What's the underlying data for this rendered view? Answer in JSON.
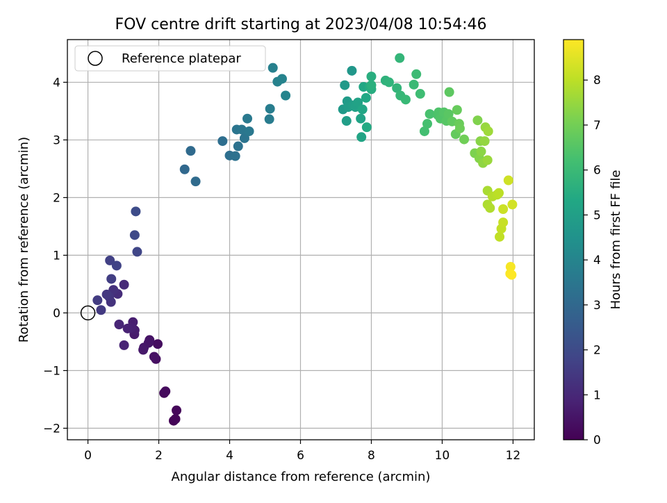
{
  "chart_data": {
    "type": "scatter",
    "title": "FOV centre drift starting at 2023/04/08 10:54:46",
    "xlabel": "Angular distance from reference (arcmin)",
    "ylabel": "Rotation from reference (arcmin)",
    "xlim": [
      -0.58,
      12.6
    ],
    "ylim": [
      -2.2,
      4.74
    ],
    "xticks": [
      "0",
      "2",
      "4",
      "6",
      "8",
      "10",
      "12"
    ],
    "yticks": [
      "−2",
      "−1",
      "0",
      "1",
      "2",
      "3",
      "4"
    ],
    "grid": true,
    "legend": {
      "position": "top-left",
      "entries": [
        {
          "label": "Reference platepar"
        }
      ]
    },
    "reference_point": {
      "x": 0,
      "y": 0
    },
    "colorbar": {
      "label": "Hours from first FF file",
      "colormap": "viridis",
      "range": [
        0,
        8.9
      ],
      "ticks": [
        "0",
        "1",
        "2",
        "3",
        "4",
        "5",
        "6",
        "7",
        "8"
      ]
    },
    "points": [
      {
        "x": 2.42,
        "y": -1.87,
        "t": 0.05
      },
      {
        "x": 2.47,
        "y": -1.84,
        "t": 0.1
      },
      {
        "x": 2.5,
        "y": -1.69,
        "t": 0.15
      },
      {
        "x": 2.15,
        "y": -1.39,
        "t": 0.2
      },
      {
        "x": 2.19,
        "y": -1.36,
        "t": 0.25
      },
      {
        "x": 1.97,
        "y": -0.54,
        "t": 0.3
      },
      {
        "x": 1.92,
        "y": -0.8,
        "t": 0.35
      },
      {
        "x": 1.87,
        "y": -0.76,
        "t": 0.4
      },
      {
        "x": 1.74,
        "y": -0.47,
        "t": 0.45
      },
      {
        "x": 1.71,
        "y": -0.52,
        "t": 0.5
      },
      {
        "x": 1.58,
        "y": -0.6,
        "t": 0.55
      },
      {
        "x": 1.56,
        "y": -0.64,
        "t": 0.6
      },
      {
        "x": 1.31,
        "y": -0.37,
        "t": 0.65
      },
      {
        "x": 1.32,
        "y": -0.3,
        "t": 0.7
      },
      {
        "x": 1.27,
        "y": -0.16,
        "t": 0.75
      },
      {
        "x": 1.22,
        "y": -0.26,
        "t": 0.8
      },
      {
        "x": 1.12,
        "y": -0.27,
        "t": 0.85
      },
      {
        "x": 1.02,
        "y": -0.56,
        "t": 0.9
      },
      {
        "x": 0.88,
        "y": -0.2,
        "t": 0.95
      },
      {
        "x": 1.02,
        "y": 0.49,
        "t": 1.05
      },
      {
        "x": 0.84,
        "y": 0.33,
        "t": 1.15
      },
      {
        "x": 0.72,
        "y": 0.4,
        "t": 1.25
      },
      {
        "x": 0.65,
        "y": 0.19,
        "t": 1.3
      },
      {
        "x": 0.6,
        "y": 0.28,
        "t": 1.35
      },
      {
        "x": 0.53,
        "y": 0.32,
        "t": 1.45
      },
      {
        "x": 0.37,
        "y": 0.05,
        "t": 1.5
      },
      {
        "x": 0.27,
        "y": 0.22,
        "t": 1.55
      },
      {
        "x": 0.66,
        "y": 0.59,
        "t": 1.6
      },
      {
        "x": 0.62,
        "y": 0.91,
        "t": 1.7
      },
      {
        "x": 0.81,
        "y": 0.82,
        "t": 1.75
      },
      {
        "x": 1.39,
        "y": 1.06,
        "t": 1.85
      },
      {
        "x": 1.32,
        "y": 1.35,
        "t": 1.95
      },
      {
        "x": 1.35,
        "y": 1.76,
        "t": 2.05
      },
      {
        "x": 2.73,
        "y": 2.49,
        "t": 3.0
      },
      {
        "x": 3.04,
        "y": 2.28,
        "t": 3.1
      },
      {
        "x": 2.9,
        "y": 2.81,
        "t": 3.05
      },
      {
        "x": 3.8,
        "y": 2.98,
        "t": 3.2
      },
      {
        "x": 4.0,
        "y": 2.73,
        "t": 3.25
      },
      {
        "x": 4.16,
        "y": 2.72,
        "t": 3.3
      },
      {
        "x": 4.24,
        "y": 2.89,
        "t": 3.35
      },
      {
        "x": 4.42,
        "y": 3.03,
        "t": 3.4
      },
      {
        "x": 4.2,
        "y": 3.18,
        "t": 3.45
      },
      {
        "x": 4.34,
        "y": 3.18,
        "t": 3.5
      },
      {
        "x": 4.55,
        "y": 3.15,
        "t": 3.55
      },
      {
        "x": 4.5,
        "y": 3.37,
        "t": 3.6
      },
      {
        "x": 5.12,
        "y": 3.36,
        "t": 3.7
      },
      {
        "x": 5.14,
        "y": 3.54,
        "t": 3.75
      },
      {
        "x": 5.22,
        "y": 4.25,
        "t": 3.85
      },
      {
        "x": 5.35,
        "y": 4.01,
        "t": 3.9
      },
      {
        "x": 5.48,
        "y": 4.06,
        "t": 3.95
      },
      {
        "x": 5.58,
        "y": 3.77,
        "t": 4.0
      },
      {
        "x": 7.45,
        "y": 4.2,
        "t": 4.7
      },
      {
        "x": 7.25,
        "y": 3.95,
        "t": 4.75
      },
      {
        "x": 7.2,
        "y": 3.53,
        "t": 4.8
      },
      {
        "x": 7.32,
        "y": 3.67,
        "t": 4.85
      },
      {
        "x": 7.35,
        "y": 3.57,
        "t": 4.9
      },
      {
        "x": 7.3,
        "y": 3.33,
        "t": 4.95
      },
      {
        "x": 7.48,
        "y": 3.6,
        "t": 5.0
      },
      {
        "x": 7.55,
        "y": 3.57,
        "t": 5.05
      },
      {
        "x": 7.62,
        "y": 3.65,
        "t": 5.1
      },
      {
        "x": 7.7,
        "y": 3.37,
        "t": 5.15
      },
      {
        "x": 7.72,
        "y": 3.05,
        "t": 5.2
      },
      {
        "x": 7.75,
        "y": 3.53,
        "t": 5.25
      },
      {
        "x": 7.78,
        "y": 3.92,
        "t": 5.3
      },
      {
        "x": 7.85,
        "y": 3.73,
        "t": 5.35
      },
      {
        "x": 7.87,
        "y": 3.22,
        "t": 5.4
      },
      {
        "x": 7.95,
        "y": 3.92,
        "t": 5.45
      },
      {
        "x": 8.0,
        "y": 3.88,
        "t": 5.5
      },
      {
        "x": 8.0,
        "y": 4.1,
        "t": 5.55
      },
      {
        "x": 8.0,
        "y": 3.95,
        "t": 5.6
      },
      {
        "x": 8.4,
        "y": 4.03,
        "t": 5.7
      },
      {
        "x": 8.5,
        "y": 4.0,
        "t": 5.75
      },
      {
        "x": 8.72,
        "y": 3.9,
        "t": 5.8
      },
      {
        "x": 8.8,
        "y": 4.42,
        "t": 5.85
      },
      {
        "x": 8.82,
        "y": 3.77,
        "t": 5.9
      },
      {
        "x": 8.97,
        "y": 3.7,
        "t": 5.95
      },
      {
        "x": 9.2,
        "y": 3.96,
        "t": 6.0
      },
      {
        "x": 9.27,
        "y": 4.14,
        "t": 6.05
      },
      {
        "x": 9.38,
        "y": 3.8,
        "t": 6.1
      },
      {
        "x": 9.5,
        "y": 3.15,
        "t": 6.2
      },
      {
        "x": 9.58,
        "y": 3.28,
        "t": 6.25
      },
      {
        "x": 9.65,
        "y": 3.45,
        "t": 6.3
      },
      {
        "x": 9.88,
        "y": 3.43,
        "t": 6.35
      },
      {
        "x": 9.9,
        "y": 3.48,
        "t": 6.4
      },
      {
        "x": 9.95,
        "y": 3.37,
        "t": 6.45
      },
      {
        "x": 10.05,
        "y": 3.48,
        "t": 6.5
      },
      {
        "x": 10.12,
        "y": 3.33,
        "t": 6.55
      },
      {
        "x": 10.18,
        "y": 3.45,
        "t": 6.6
      },
      {
        "x": 10.2,
        "y": 3.83,
        "t": 6.65
      },
      {
        "x": 10.28,
        "y": 3.32,
        "t": 6.7
      },
      {
        "x": 10.38,
        "y": 3.1,
        "t": 6.75
      },
      {
        "x": 10.42,
        "y": 3.52,
        "t": 6.8
      },
      {
        "x": 10.48,
        "y": 3.28,
        "t": 6.85
      },
      {
        "x": 10.5,
        "y": 3.2,
        "t": 6.9
      },
      {
        "x": 10.62,
        "y": 3.01,
        "t": 6.95
      },
      {
        "x": 10.92,
        "y": 2.77,
        "t": 7.15
      },
      {
        "x": 11.0,
        "y": 3.34,
        "t": 7.2
      },
      {
        "x": 11.05,
        "y": 2.68,
        "t": 7.25
      },
      {
        "x": 11.08,
        "y": 2.98,
        "t": 7.3
      },
      {
        "x": 11.1,
        "y": 2.8,
        "t": 7.35
      },
      {
        "x": 11.15,
        "y": 2.6,
        "t": 7.4
      },
      {
        "x": 11.2,
        "y": 2.98,
        "t": 7.45
      },
      {
        "x": 11.22,
        "y": 3.22,
        "t": 7.5
      },
      {
        "x": 11.28,
        "y": 2.65,
        "t": 7.55
      },
      {
        "x": 11.3,
        "y": 3.15,
        "t": 7.6
      },
      {
        "x": 11.28,
        "y": 2.12,
        "t": 7.75
      },
      {
        "x": 11.28,
        "y": 1.88,
        "t": 7.8
      },
      {
        "x": 11.35,
        "y": 1.82,
        "t": 7.85
      },
      {
        "x": 11.42,
        "y": 2.02,
        "t": 7.9
      },
      {
        "x": 11.55,
        "y": 2.05,
        "t": 7.95
      },
      {
        "x": 11.6,
        "y": 2.08,
        "t": 8.0
      },
      {
        "x": 11.62,
        "y": 1.32,
        "t": 8.05
      },
      {
        "x": 11.67,
        "y": 1.46,
        "t": 8.1
      },
      {
        "x": 11.72,
        "y": 1.57,
        "t": 8.15
      },
      {
        "x": 11.72,
        "y": 1.8,
        "t": 8.2
      },
      {
        "x": 11.87,
        "y": 2.3,
        "t": 8.25
      },
      {
        "x": 11.98,
        "y": 1.88,
        "t": 8.3
      },
      {
        "x": 11.93,
        "y": 0.8,
        "t": 8.8
      },
      {
        "x": 11.92,
        "y": 0.68,
        "t": 8.85
      },
      {
        "x": 11.96,
        "y": 0.66,
        "t": 8.9
      }
    ]
  }
}
